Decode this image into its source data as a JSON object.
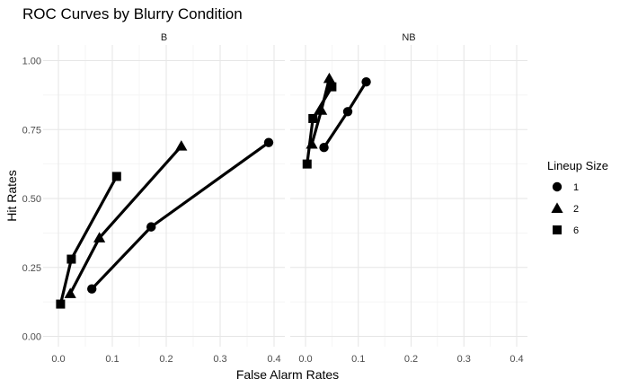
{
  "chart_data": {
    "type": "line",
    "title": "ROC Curves by Blurry Condition",
    "xlabel": "False Alarm Rates",
    "ylabel": "Hit Rates",
    "xlim": [
      0,
      0.4
    ],
    "ylim": [
      0,
      1
    ],
    "x_ticks": [
      "0.0",
      "0.1",
      "0.2",
      "0.3",
      "0.4"
    ],
    "y_ticks": [
      "0.00",
      "0.25",
      "0.50",
      "0.75",
      "1.00"
    ],
    "grid": true,
    "legend": {
      "title": "Lineup Size",
      "position": "right"
    },
    "panels": [
      {
        "name": "B",
        "series": [
          {
            "name": "1",
            "marker": "circle",
            "x": [
              0.062,
              0.172,
              0.39
            ],
            "y": [
              0.172,
              0.397,
              0.703
            ]
          },
          {
            "name": "2",
            "marker": "triangle",
            "x": [
              0.022,
              0.076,
              0.228
            ],
            "y": [
              0.155,
              0.357,
              0.69
            ]
          },
          {
            "name": "6",
            "marker": "square",
            "x": [
              0.004,
              0.024,
              0.108
            ],
            "y": [
              0.117,
              0.28,
              0.58
            ]
          }
        ]
      },
      {
        "name": "NB",
        "series": [
          {
            "name": "1",
            "marker": "circle",
            "x": [
              0.035,
              0.08,
              0.115
            ],
            "y": [
              0.685,
              0.815,
              0.923
            ]
          },
          {
            "name": "2",
            "marker": "triangle",
            "x": [
              0.012,
              0.03,
              0.045
            ],
            "y": [
              0.697,
              0.82,
              0.935
            ]
          },
          {
            "name": "6",
            "marker": "square",
            "x": [
              0.003,
              0.014,
              0.05
            ],
            "y": [
              0.625,
              0.79,
              0.905
            ]
          }
        ]
      }
    ]
  }
}
